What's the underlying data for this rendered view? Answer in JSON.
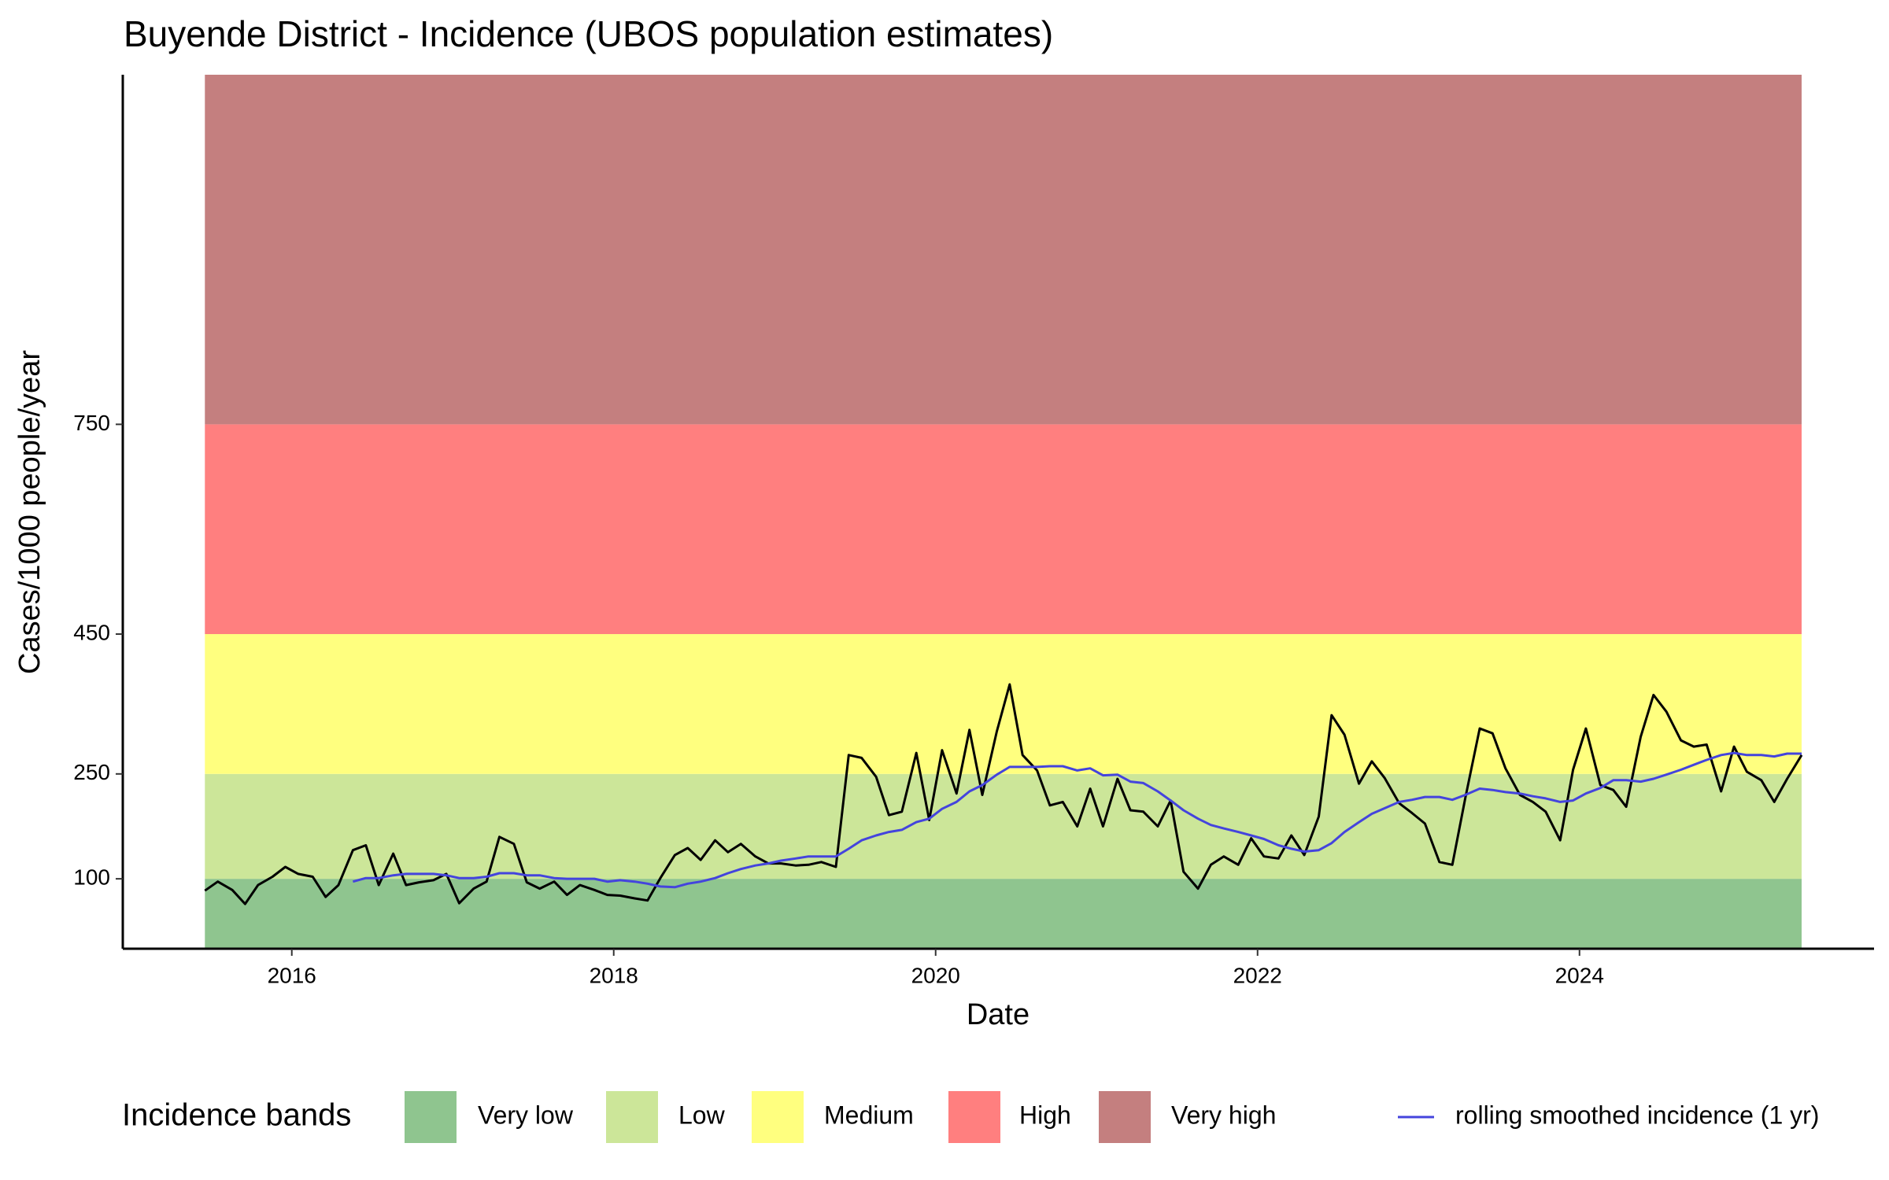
{
  "chart_data": {
    "type": "line",
    "title": "Buyende District - Incidence (UBOS population estimates)",
    "x_label": "Date",
    "y_label": "Cases/1000 people/year",
    "xlim": [
      2014.95,
      2025.83
    ],
    "xticks": [
      2016,
      2018,
      2020,
      2022,
      2024
    ],
    "ylim": [
      0,
      1250
    ],
    "yticks": [
      100,
      250,
      450,
      750
    ],
    "legend_title": "Incidence bands",
    "legend": "bottom",
    "bands": [
      {
        "name": "Very low",
        "range": [
          0,
          100
        ],
        "color": "#8fc58f"
      },
      {
        "name": "Low",
        "range": [
          100,
          250
        ],
        "color": "#cce699"
      },
      {
        "name": "Medium",
        "range": [
          250,
          450
        ],
        "color": "#ffff7f"
      },
      {
        "name": "High",
        "range": [
          450,
          750
        ],
        "color": "#ff7f7f"
      },
      {
        "name": "Very high",
        "range": [
          750,
          1250
        ],
        "color": "#c47f7f"
      }
    ],
    "x": [
      2015.46,
      2015.54,
      2015.63,
      2015.71,
      2015.79,
      2015.88,
      2015.96,
      2016.04,
      2016.13,
      2016.21,
      2016.29,
      2016.38,
      2016.46,
      2016.54,
      2016.63,
      2016.71,
      2016.79,
      2016.88,
      2016.96,
      2017.04,
      2017.13,
      2017.21,
      2017.29,
      2017.38,
      2017.46,
      2017.54,
      2017.63,
      2017.71,
      2017.79,
      2017.88,
      2017.96,
      2018.04,
      2018.13,
      2018.21,
      2018.29,
      2018.38,
      2018.46,
      2018.54,
      2018.63,
      2018.71,
      2018.79,
      2018.88,
      2018.96,
      2019.04,
      2019.13,
      2019.21,
      2019.29,
      2019.38,
      2019.46,
      2019.54,
      2019.63,
      2019.71,
      2019.79,
      2019.88,
      2019.96,
      2020.04,
      2020.13,
      2020.21,
      2020.29,
      2020.38,
      2020.46,
      2020.54,
      2020.63,
      2020.71,
      2020.79,
      2020.88,
      2020.96,
      2021.04,
      2021.13,
      2021.21,
      2021.29,
      2021.38,
      2021.46,
      2021.54,
      2021.63,
      2021.71,
      2021.79,
      2021.88,
      2021.96,
      2022.04,
      2022.13,
      2022.21,
      2022.29,
      2022.38,
      2022.46,
      2022.54,
      2022.63,
      2022.71,
      2022.79,
      2022.88,
      2022.96,
      2023.04,
      2023.13,
      2023.21,
      2023.29,
      2023.38,
      2023.46,
      2023.54,
      2023.63,
      2023.71,
      2023.79,
      2023.88,
      2023.96,
      2024.04,
      2024.13,
      2024.21,
      2024.29,
      2024.38,
      2024.46,
      2024.54,
      2024.63,
      2024.71,
      2024.79,
      2024.88,
      2024.96,
      2025.04,
      2025.13,
      2025.21,
      2025.29,
      2025.38
    ],
    "series": [
      {
        "color": "#000000",
        "values": [
          83,
          96,
          84,
          64,
          91,
          103,
          117,
          107,
          103,
          74,
          91,
          141,
          148,
          91,
          136,
          91,
          95,
          98,
          107,
          65,
          86,
          96,
          160,
          150,
          95,
          86,
          96,
          77,
          91,
          84,
          77,
          76,
          72,
          69,
          101,
          134,
          144,
          127,
          155,
          138,
          150,
          132,
          122,
          122,
          119,
          120,
          124,
          117,
          277,
          273,
          246,
          191,
          196,
          280,
          184,
          284,
          222,
          313,
          220,
          311,
          378,
          277,
          255,
          205,
          210,
          175,
          229,
          175,
          243,
          198,
          196,
          175,
          212,
          110,
          86,
          120,
          132,
          120,
          158,
          132,
          129,
          162,
          134,
          189,
          334,
          306,
          236,
          268,
          244,
          208,
          194,
          179,
          124,
          120,
          215,
          315,
          308,
          258,
          220,
          210,
          196,
          155,
          256,
          315,
          234,
          227,
          203,
          303,
          363,
          339,
          298,
          289,
          292,
          225,
          289,
          253,
          241,
          210,
          243,
          277
        ]
      },
      {
        "name": "rolling smoothed incidence (1 yr)",
        "color": "#4444dd",
        "values": [
          null,
          null,
          null,
          null,
          null,
          null,
          null,
          null,
          null,
          null,
          null,
          96,
          101,
          101,
          105,
          107,
          107,
          107,
          105,
          101,
          101,
          103,
          108,
          108,
          105,
          105,
          101,
          100,
          100,
          100,
          96,
          98,
          96,
          93,
          89,
          88,
          93,
          96,
          101,
          108,
          114,
          119,
          122,
          126,
          129,
          132,
          132,
          132,
          143,
          155,
          162,
          167,
          170,
          181,
          186,
          200,
          210,
          225,
          234,
          249,
          260,
          260,
          260,
          261,
          261,
          255,
          258,
          248,
          249,
          239,
          237,
          225,
          212,
          198,
          186,
          177,
          172,
          167,
          162,
          157,
          148,
          143,
          139,
          141,
          151,
          167,
          181,
          193,
          201,
          210,
          213,
          217,
          217,
          213,
          220,
          229,
          227,
          224,
          222,
          218,
          215,
          210,
          212,
          222,
          230,
          241,
          241,
          239,
          243,
          249,
          256,
          263,
          270,
          277,
          280,
          277,
          277,
          275,
          279,
          279
        ]
      }
    ]
  }
}
